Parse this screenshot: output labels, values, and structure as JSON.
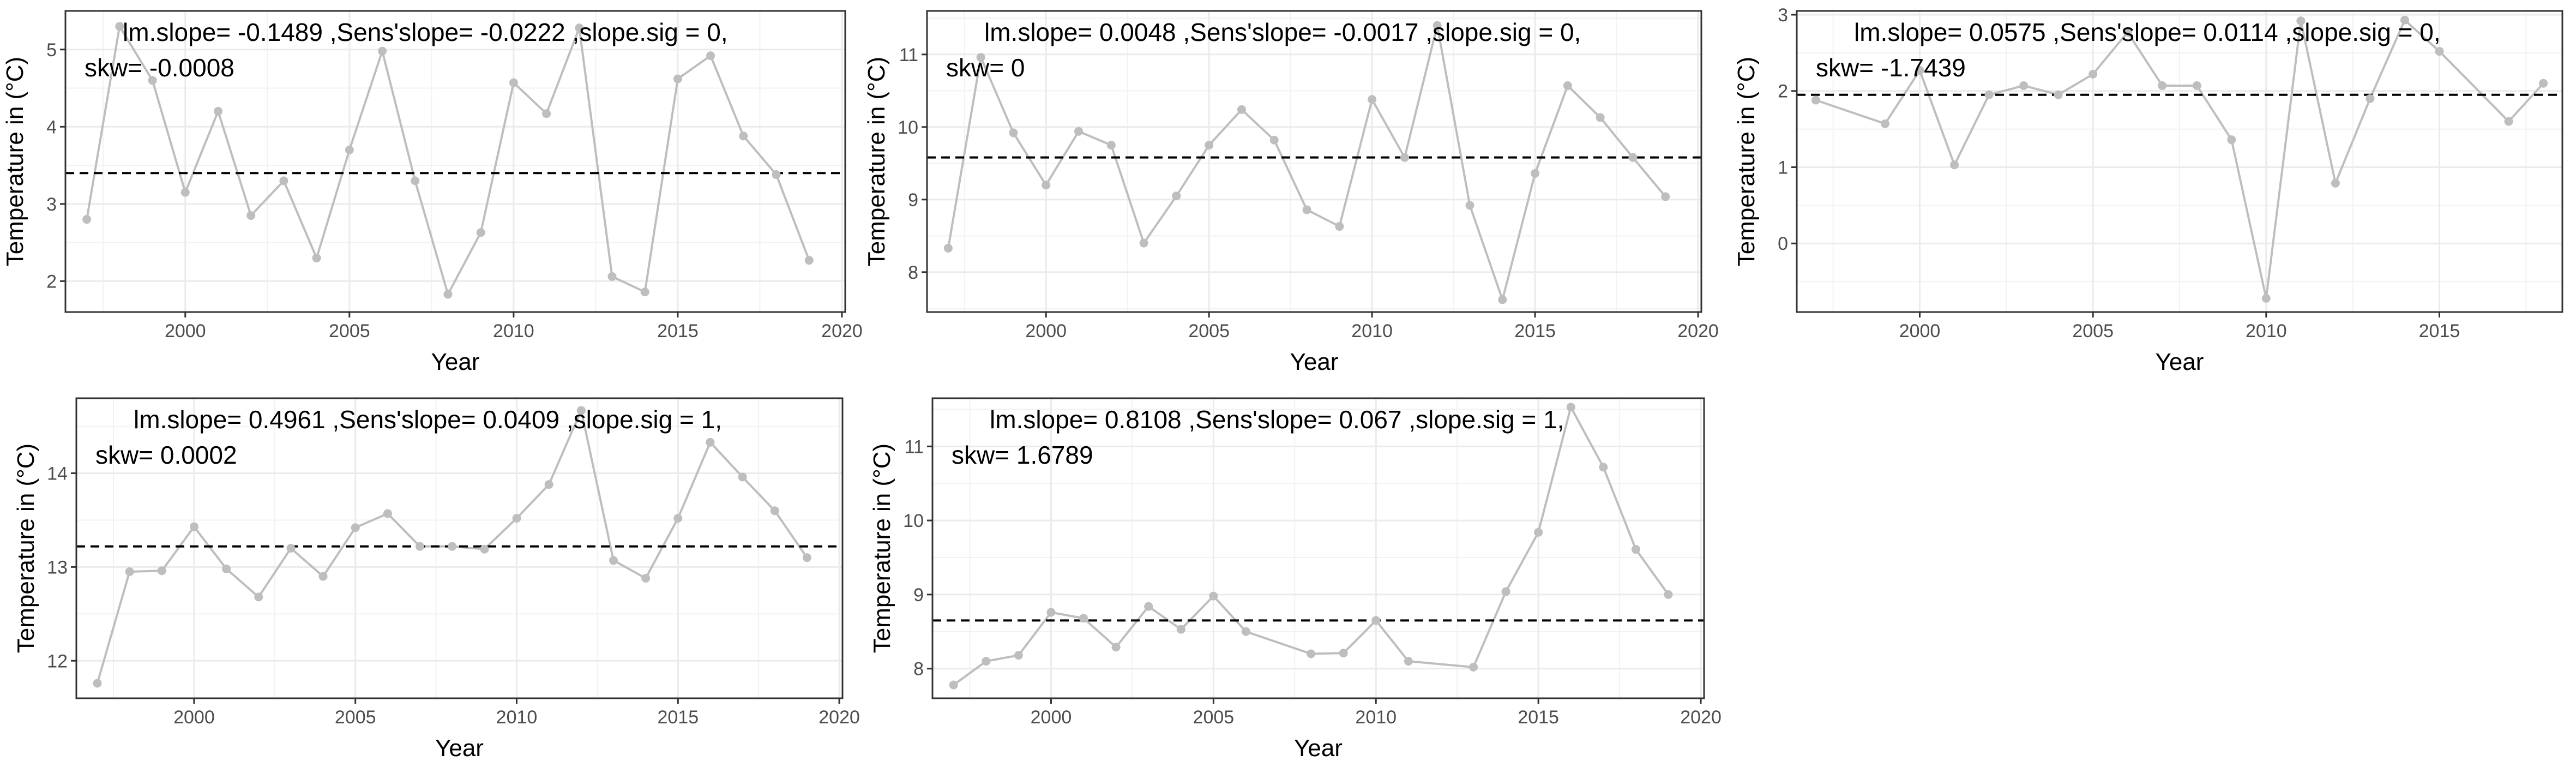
{
  "chart_data": [
    {
      "type": "line",
      "ann1": "lm.slope= -0.1489 ,Sens'slope= -0.0222 ,slope.sig = 0,",
      "ann2": "skw= -0.0008",
      "xlabel": "Year",
      "ylabel": "Temperature in (°C)",
      "xlim": [
        1996.35,
        2020.1
      ],
      "ylim": [
        1.6,
        5.5
      ],
      "xticks": [
        2000,
        2005,
        2010,
        2015,
        2020
      ],
      "xtick_labels": [
        "2000",
        "2005",
        "2010",
        "2015",
        "2020"
      ],
      "yticks": [
        2,
        3,
        4,
        5
      ],
      "ytick_labels": [
        "2",
        "3",
        "4",
        "5"
      ],
      "mean": 3.4,
      "grid": true,
      "x": [
        1997,
        1998,
        1999,
        2000,
        2001,
        2002,
        2003,
        2004,
        2005,
        2006,
        2007,
        2008,
        2009,
        2010,
        2011,
        2012,
        2013,
        2014,
        2015,
        2016,
        2017,
        2018,
        2019
      ],
      "y": [
        2.8,
        5.3,
        4.6,
        3.15,
        4.2,
        2.85,
        3.3,
        2.3,
        3.7,
        4.98,
        3.3,
        1.83,
        2.63,
        4.57,
        4.17,
        5.28,
        2.06,
        1.86,
        4.62,
        4.92,
        3.88,
        3.38,
        2.27
      ]
    },
    {
      "type": "line",
      "ann1": "lm.slope= 0.0048 ,Sens'slope= -0.0017 ,slope.sig = 0,",
      "ann2": "skw= 0",
      "xlabel": "Year",
      "ylabel": "Temperature in (°C)",
      "xlim": [
        1996.35,
        2020.1
      ],
      "ylim": [
        7.45,
        11.6
      ],
      "xticks": [
        2000,
        2005,
        2010,
        2015,
        2020
      ],
      "xtick_labels": [
        "2000",
        "2005",
        "2010",
        "2015",
        "2020"
      ],
      "yticks": [
        8,
        9,
        10,
        11
      ],
      "ytick_labels": [
        "8",
        "9",
        "10",
        "11"
      ],
      "mean": 9.58,
      "grid": true,
      "x": [
        1997,
        1998,
        1999,
        2000,
        2001,
        2002,
        2003,
        2004,
        2005,
        2006,
        2007,
        2008,
        2009,
        2010,
        2011,
        2012,
        2013,
        2014,
        2015,
        2016,
        2017,
        2018,
        2019
      ],
      "y": [
        8.33,
        10.96,
        9.92,
        9.2,
        9.94,
        9.75,
        8.4,
        9.05,
        9.75,
        10.24,
        9.82,
        8.86,
        8.63,
        10.38,
        9.58,
        11.4,
        8.92,
        7.62,
        9.36,
        10.57,
        10.13,
        9.58,
        9.04
      ]
    },
    {
      "type": "line",
      "ann1": "lm.slope= 0.0575 ,Sens'slope= 0.0114 ,slope.sig = 0,",
      "ann2": "skw= -1.7439",
      "xlabel": "Year",
      "ylabel": "Temperature in (°C)",
      "xlim": [
        1996.45,
        2018.55
      ],
      "ylim": [
        -0.9,
        3.05
      ],
      "xticks": [
        2000,
        2005,
        2010,
        2015
      ],
      "xtick_labels": [
        "2000",
        "2005",
        "2010",
        "2015"
      ],
      "yticks": [
        0,
        1,
        2,
        3
      ],
      "ytick_labels": [
        "0",
        "1",
        "2",
        "3"
      ],
      "mean": 1.95,
      "grid": true,
      "x": [
        1997,
        1999,
        2000,
        2001,
        2002,
        2003,
        2004,
        2005,
        2006,
        2007,
        2008,
        2009,
        2010,
        2011,
        2012,
        2013,
        2014,
        2015,
        2017,
        2018
      ],
      "y": [
        1.88,
        1.57,
        2.27,
        1.03,
        1.95,
        2.07,
        1.95,
        2.22,
        2.77,
        2.07,
        2.07,
        1.36,
        -0.72,
        2.92,
        0.79,
        1.9,
        2.93,
        2.52,
        1.6,
        2.1
      ]
    },
    {
      "type": "line",
      "ann1": "lm.slope= 0.4961 ,Sens'slope= 0.0409 ,slope.sig = 1,",
      "ann2": "skw= 0.0002",
      "xlabel": "Year",
      "ylabel": "Temperature in (°C)",
      "xlim": [
        1996.35,
        2020.1
      ],
      "ylim": [
        11.6,
        14.8
      ],
      "xticks": [
        2000,
        2005,
        2010,
        2015,
        2020
      ],
      "xtick_labels": [
        "2000",
        "2005",
        "2010",
        "2015",
        "2020"
      ],
      "yticks": [
        12,
        13,
        14
      ],
      "ytick_labels": [
        "12",
        "13",
        "14"
      ],
      "mean": 13.22,
      "grid": true,
      "x": [
        1997,
        1998,
        1999,
        2000,
        2001,
        2002,
        2003,
        2004,
        2005,
        2006,
        2007,
        2008,
        2009,
        2010,
        2011,
        2012,
        2013,
        2014,
        2015,
        2016,
        2017,
        2018,
        2019
      ],
      "y": [
        11.76,
        12.95,
        12.96,
        13.43,
        12.98,
        12.68,
        13.2,
        12.9,
        13.42,
        13.57,
        13.22,
        13.22,
        13.19,
        13.52,
        13.88,
        14.67,
        13.07,
        12.88,
        13.52,
        14.33,
        13.96,
        13.6,
        13.1
      ]
    },
    {
      "type": "line",
      "ann1": "lm.slope= 0.8108 ,Sens'slope= 0.067 ,slope.sig = 1,",
      "ann2": "skw= 1.6789",
      "xlabel": "Year",
      "ylabel": "Temperature in (°C)",
      "xlim": [
        1996.35,
        2020.1
      ],
      "ylim": [
        7.6,
        11.65
      ],
      "xticks": [
        2000,
        2005,
        2010,
        2015,
        2020
      ],
      "xtick_labels": [
        "2000",
        "2005",
        "2010",
        "2015",
        "2020"
      ],
      "yticks": [
        8,
        9,
        10,
        11
      ],
      "ytick_labels": [
        "8",
        "9",
        "10",
        "11"
      ],
      "mean": 8.65,
      "grid": true,
      "x": [
        1997,
        1998,
        1999,
        2000,
        2001,
        2002,
        2003,
        2004,
        2005,
        2006,
        2008,
        2009,
        2010,
        2011,
        2013,
        2014,
        2015,
        2016,
        2017,
        2018,
        2019
      ],
      "y": [
        7.78,
        8.1,
        8.18,
        8.76,
        8.68,
        8.29,
        8.84,
        8.53,
        8.98,
        8.5,
        8.2,
        8.21,
        8.65,
        8.1,
        8.02,
        9.04,
        9.84,
        11.53,
        10.72,
        9.61,
        9.0
      ]
    }
  ]
}
